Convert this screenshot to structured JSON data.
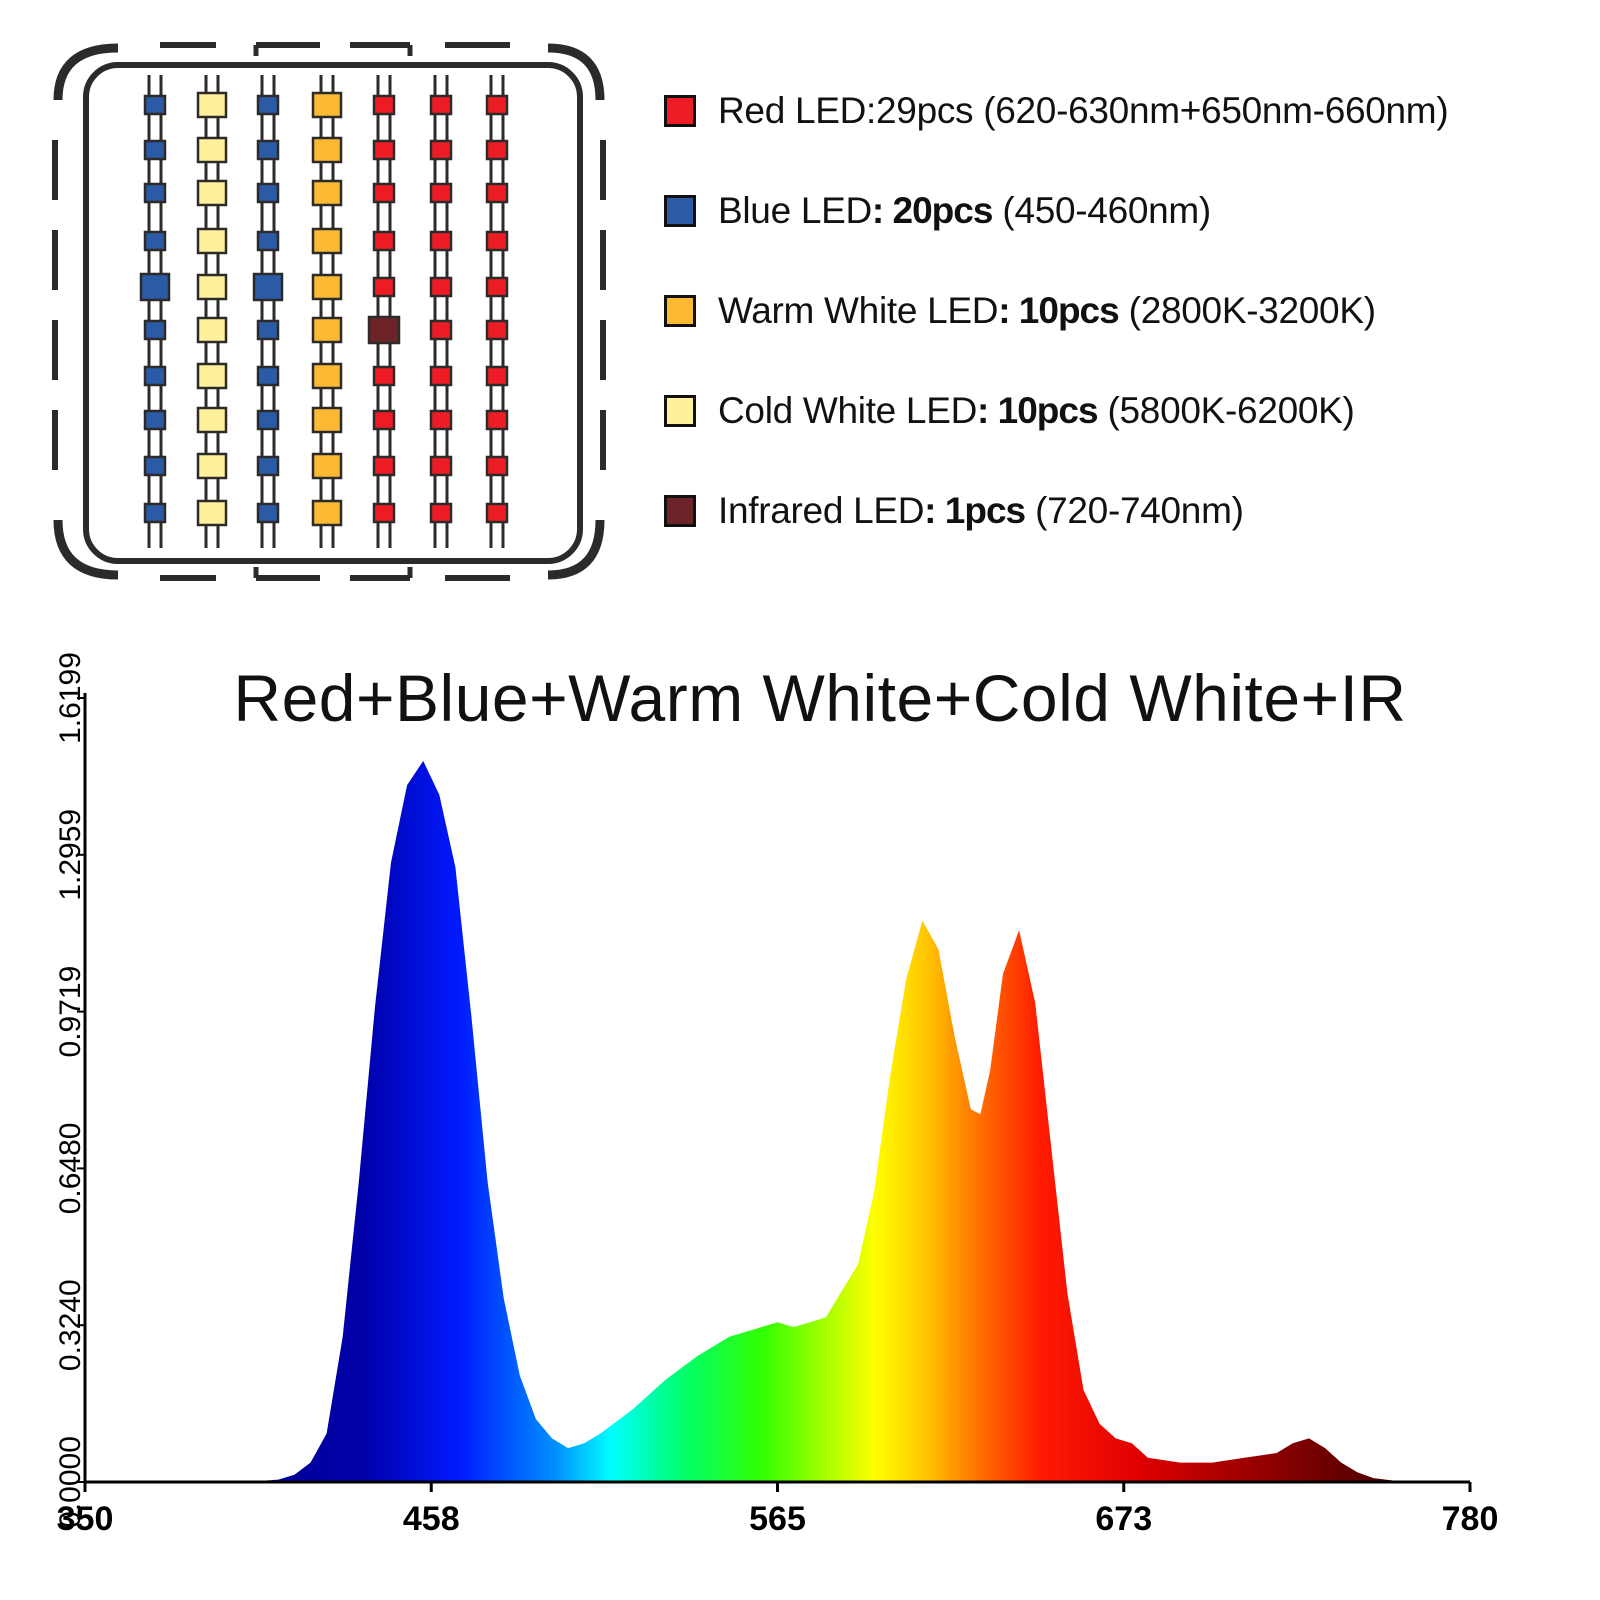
{
  "board": {
    "columns": [
      {
        "type": "blue",
        "count": 10,
        "large_row": 4
      },
      {
        "type": "cold_white",
        "count": 10
      },
      {
        "type": "blue",
        "count": 10,
        "large_row": 4
      },
      {
        "type": "warm_white",
        "count": 10
      },
      {
        "type": "red",
        "count": 9,
        "ir_row": 5
      },
      {
        "type": "red",
        "count": 10
      },
      {
        "type": "red",
        "count": 10
      }
    ]
  },
  "colors": {
    "red": "#ee1c24",
    "blue": "#2b5aa6",
    "warm_white": "#fbb934",
    "cold_white": "#fff19b",
    "infrared": "#6d2429",
    "outline": "#2d2a2a"
  },
  "legend": [
    {
      "key": "red",
      "name": "Red LED:29pcs",
      "qty": "",
      "spec": " (620-630nm+650nm-660nm)"
    },
    {
      "key": "blue",
      "name": "Blue LED",
      "qty": ": 20pcs",
      "spec": " (450-460nm)"
    },
    {
      "key": "warm_white",
      "name": "Warm White LED",
      "qty": ": 10pcs",
      "spec": " (2800K-3200K)"
    },
    {
      "key": "cold_white",
      "name": "Cold White LED",
      "qty": ": 10pcs",
      "spec": " (5800K-6200K)"
    },
    {
      "key": "infrared",
      "name": "Infrared LED",
      "qty": ": 1pcs",
      "spec": " (720-740nm)"
    }
  ],
  "chart_data": {
    "type": "area",
    "title": "Red+Blue+Warm White+Cold White+IR",
    "xlabel": "",
    "ylabel": "",
    "xlim": [
      350,
      780
    ],
    "ylim": [
      0,
      1.6199
    ],
    "x_ticks": [
      "350",
      "458",
      "565",
      "673",
      "780"
    ],
    "y_ticks": [
      "0.0000",
      "0.3240",
      "0.6480",
      "0.9719",
      "1.2959",
      "1.6199"
    ],
    "grid": false,
    "fill": "spectral gradient by wavelength",
    "x": [
      350,
      400,
      410,
      415,
      420,
      425,
      430,
      435,
      440,
      445,
      450,
      455,
      460,
      465,
      470,
      475,
      480,
      485,
      490,
      495,
      500,
      505,
      510,
      520,
      530,
      540,
      550,
      560,
      565,
      570,
      580,
      590,
      595,
      600,
      605,
      610,
      615,
      620,
      625,
      628,
      631,
      635,
      640,
      645,
      650,
      655,
      660,
      665,
      670,
      675,
      680,
      690,
      700,
      710,
      720,
      725,
      730,
      735,
      740,
      745,
      750,
      760,
      780
    ],
    "y": [
      0,
      0,
      0.005,
      0.015,
      0.04,
      0.1,
      0.3,
      0.62,
      0.98,
      1.28,
      1.44,
      1.49,
      1.42,
      1.27,
      0.96,
      0.62,
      0.38,
      0.22,
      0.13,
      0.09,
      0.07,
      0.08,
      0.1,
      0.15,
      0.21,
      0.26,
      0.3,
      0.32,
      0.33,
      0.32,
      0.34,
      0.45,
      0.6,
      0.84,
      1.04,
      1.16,
      1.1,
      0.92,
      0.77,
      0.76,
      0.85,
      1.05,
      1.14,
      0.99,
      0.69,
      0.39,
      0.19,
      0.12,
      0.09,
      0.08,
      0.05,
      0.04,
      0.04,
      0.05,
      0.06,
      0.08,
      0.09,
      0.07,
      0.04,
      0.02,
      0.008,
      0,
      0
    ]
  }
}
